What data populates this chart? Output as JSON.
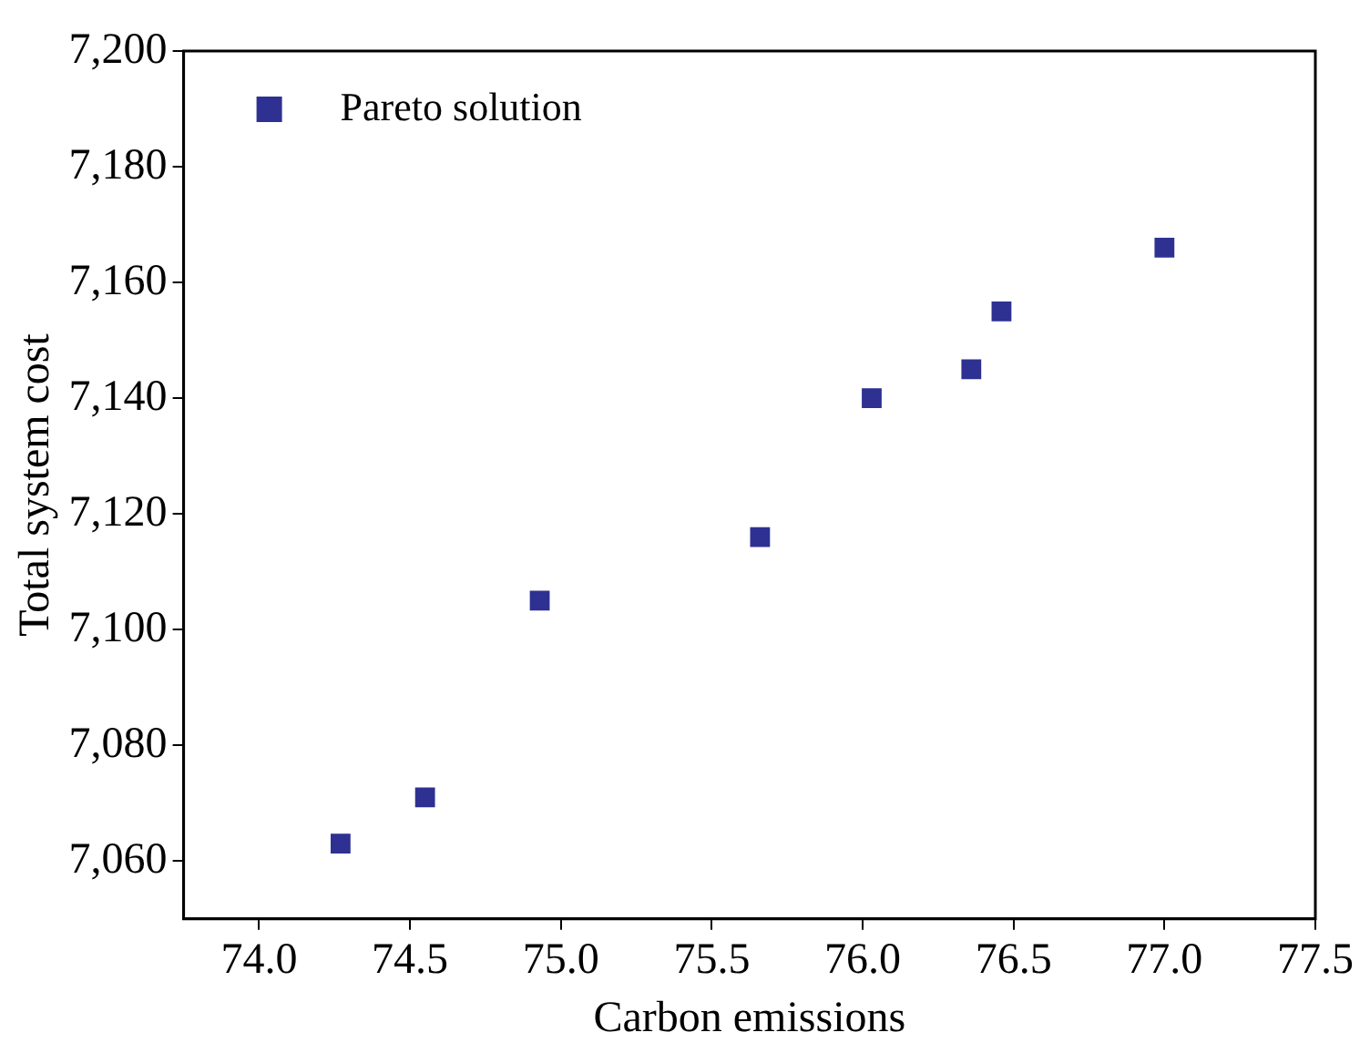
{
  "chart_data": {
    "type": "scatter",
    "xlabel": "Carbon emissions",
    "ylabel": "Total system cost",
    "legend": "top left",
    "grid": false,
    "marker": "square",
    "xlim": [
      73.75,
      77.5
    ],
    "xticks": [
      {
        "value": 74,
        "label": "74.0"
      },
      {
        "value": 74.5,
        "label": "74.5"
      },
      {
        "value": 75,
        "label": "75.0"
      },
      {
        "value": 75.5,
        "label": "75.5"
      },
      {
        "value": 76,
        "label": "76.0"
      },
      {
        "value": 76.5,
        "label": "76.5"
      },
      {
        "value": 77,
        "label": "77.0"
      },
      {
        "value": 77.5,
        "label": "77.5"
      }
    ],
    "ylim": [
      7050,
      7200
    ],
    "yticks": [
      {
        "value": 7060,
        "label": "7,060"
      },
      {
        "value": 7080,
        "label": "7,080"
      },
      {
        "value": 7100,
        "label": "7,100"
      },
      {
        "value": 7120,
        "label": "7,120"
      },
      {
        "value": 7140,
        "label": "7,140"
      },
      {
        "value": 7160,
        "label": "7,160"
      },
      {
        "value": 7180,
        "label": "7,180"
      },
      {
        "value": 7200,
        "label": "7,200"
      }
    ],
    "series": [
      {
        "name": "Pareto solution",
        "color": "#2e3192",
        "x": [
          74.27,
          74.55,
          74.93,
          75.66,
          76.03,
          76.36,
          76.46,
          77.0
        ],
        "values": [
          7063,
          7071,
          7105,
          7116,
          7140,
          7145,
          7155,
          7166
        ]
      }
    ]
  }
}
